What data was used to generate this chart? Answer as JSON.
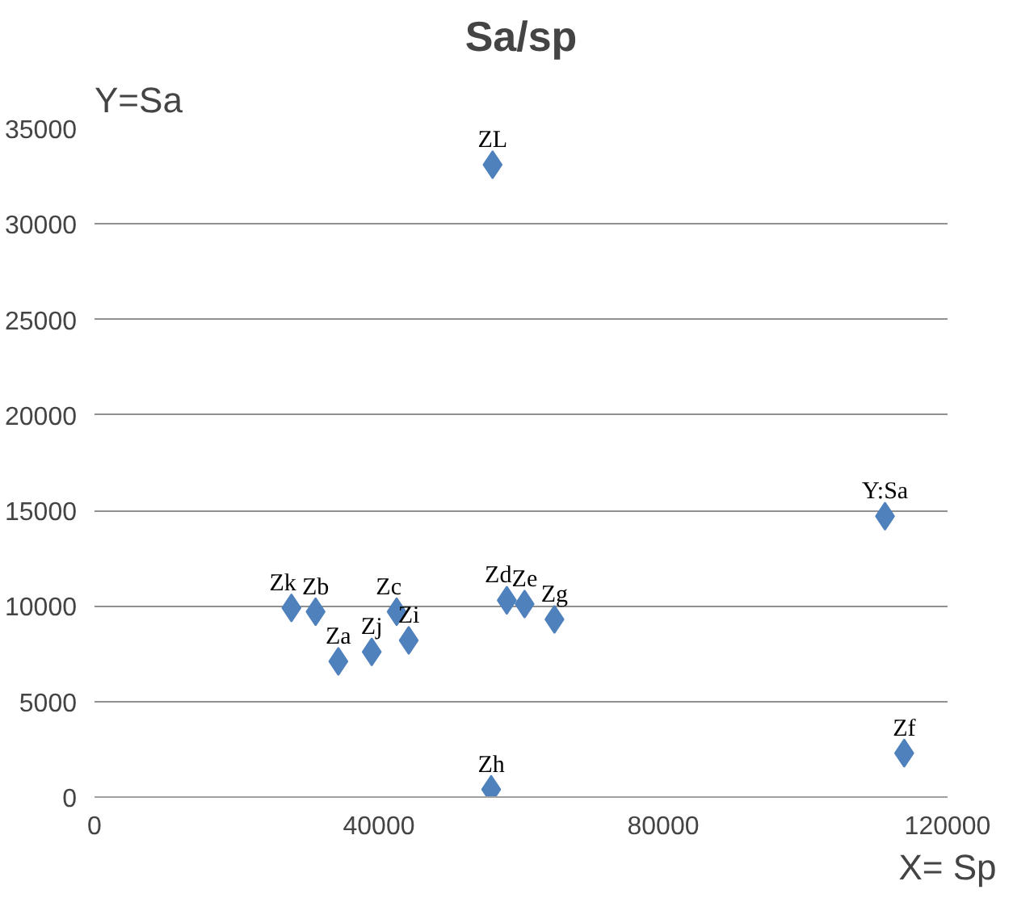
{
  "chart_data": {
    "type": "scatter",
    "title": "Sa/sp",
    "ylabel": "Y=Sa",
    "xlabel": "X= Sp",
    "x": [
      56000,
      111200,
      27700,
      31100,
      34300,
      39000,
      42500,
      44200,
      58000,
      60500,
      64700,
      55800,
      113900
    ],
    "series": [
      {
        "color": "#4f81bd",
        "values": [
          33100,
          14700,
          9900,
          9700,
          7100,
          7600,
          9700,
          8200,
          10300,
          10100,
          9300,
          400,
          2300
        ],
        "value_labels": [
          "ZL",
          "Y:Sa",
          "Zk",
          "Zb",
          "Za",
          "Zj",
          "Zc",
          "Zi",
          "Zd",
          "Ze",
          "Zg",
          "Zh",
          "Zf"
        ]
      }
    ],
    "xlim": [
      0,
      120000
    ],
    "xticks": [
      0,
      40000,
      80000,
      120000
    ],
    "ylim": [
      0,
      35000
    ],
    "yticks": [
      0,
      5000,
      10000,
      15000,
      20000,
      25000,
      30000,
      35000
    ],
    "grid": "y",
    "marker": "diamond"
  }
}
